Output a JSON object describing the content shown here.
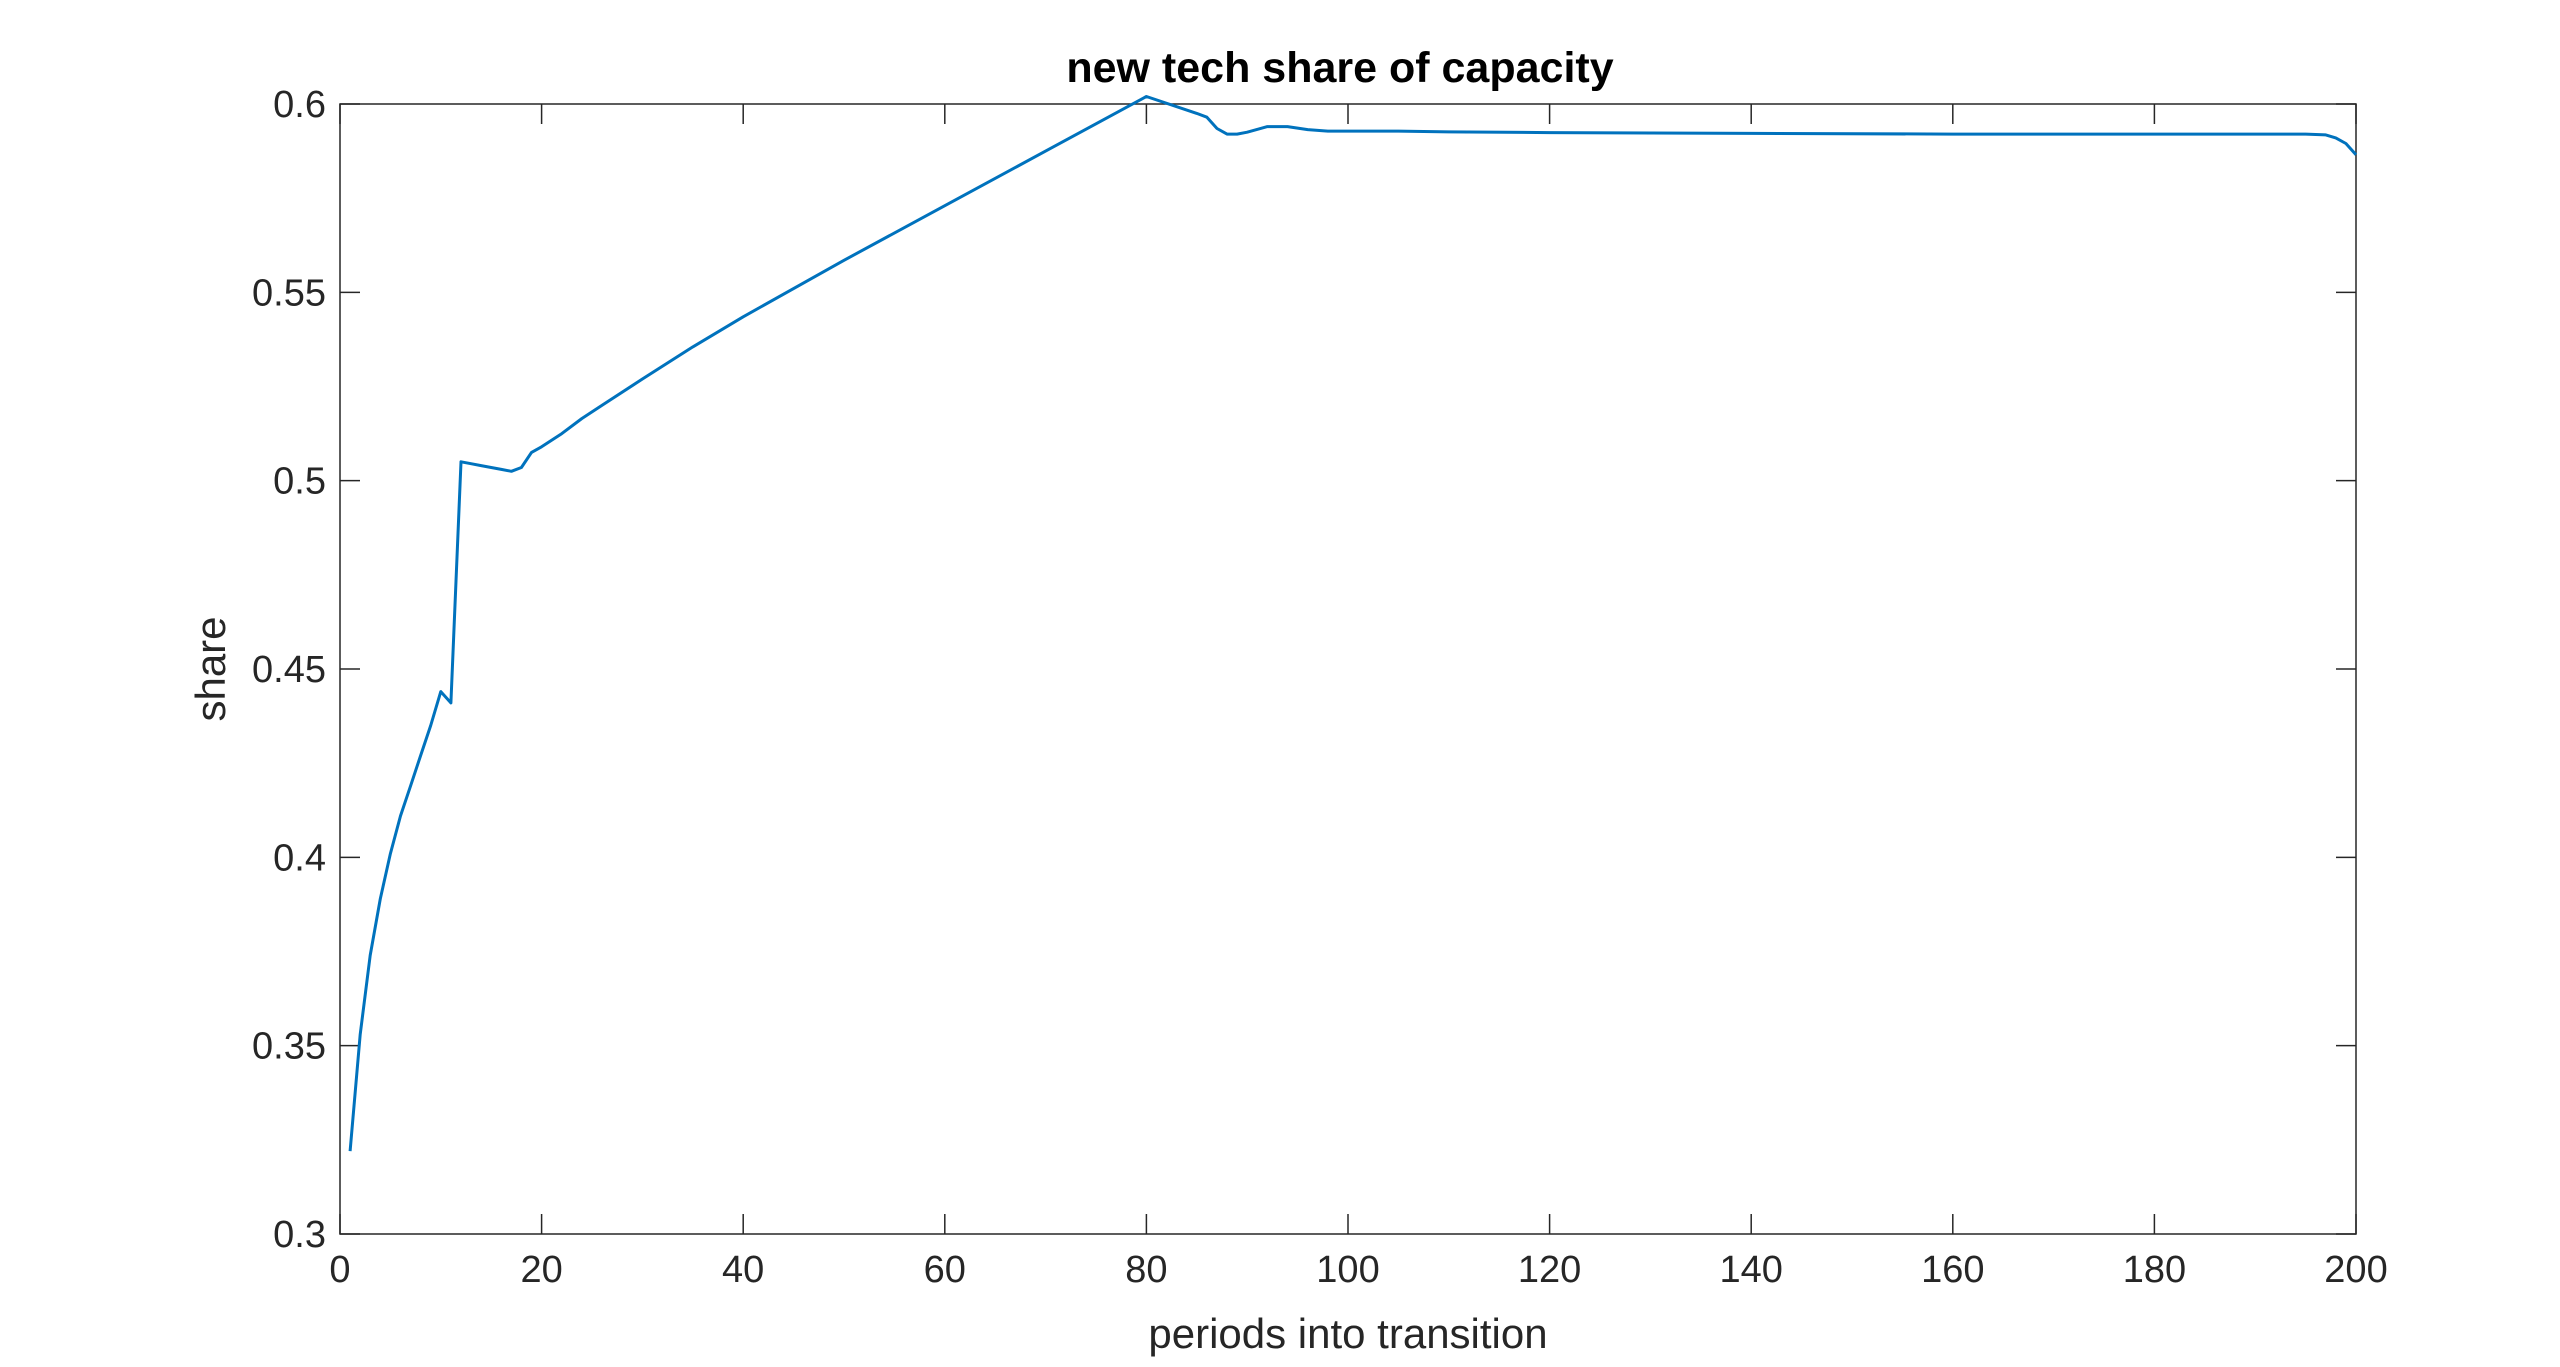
{
  "chart_data": {
    "type": "line",
    "title": "new tech share of capacity",
    "xlabel": "periods into transition",
    "ylabel": "share",
    "xlim": [
      0,
      200
    ],
    "ylim": [
      0.3,
      0.6
    ],
    "xticks": [
      0,
      20,
      40,
      60,
      80,
      100,
      120,
      140,
      160,
      180,
      200
    ],
    "xtick_labels": [
      "0",
      "20",
      "40",
      "60",
      "80",
      "100",
      "120",
      "140",
      "160",
      "180",
      "200"
    ],
    "yticks": [
      0.3,
      0.35,
      0.4,
      0.45,
      0.5,
      0.55,
      0.6
    ],
    "ytick_labels": [
      "0.3",
      "0.35",
      "0.4",
      "0.45",
      "0.5",
      "0.55",
      "0.6"
    ],
    "grid": false,
    "line_color": "#0072BD",
    "series": [
      {
        "x": [
          1,
          2,
          3,
          4,
          5,
          6,
          7,
          8,
          9,
          10,
          11,
          12,
          13,
          14,
          15,
          16,
          17,
          18,
          19,
          20,
          22,
          24,
          26,
          30,
          35,
          40,
          50,
          60,
          70,
          80,
          85,
          86,
          87,
          88,
          89,
          90,
          92,
          94,
          96,
          98,
          100,
          105,
          110,
          120,
          140,
          160,
          180,
          195,
          197,
          198,
          199,
          200
        ],
        "y": [
          0.322,
          0.353,
          0.374,
          0.389,
          0.401,
          0.411,
          0.419,
          0.427,
          0.435,
          0.444,
          0.441,
          0.505,
          0.5045,
          0.504,
          0.5035,
          0.503,
          0.5025,
          0.5035,
          0.5075,
          0.509,
          0.5125,
          0.5165,
          0.52,
          0.527,
          0.5355,
          0.5435,
          0.5585,
          0.573,
          0.5875,
          0.602,
          0.5975,
          0.5965,
          0.5935,
          0.592,
          0.592,
          0.5925,
          0.594,
          0.594,
          0.5932,
          0.5928,
          0.5928,
          0.5928,
          0.5926,
          0.5924,
          0.5922,
          0.592,
          0.592,
          0.592,
          0.5918,
          0.591,
          0.5895,
          0.5865
        ]
      }
    ]
  }
}
